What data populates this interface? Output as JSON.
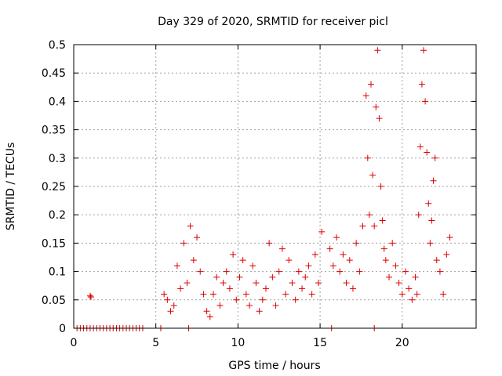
{
  "chart_data": {
    "type": "scatter",
    "title": "Day 329 of 2020, SRMTID for receiver picl",
    "xlabel": "GPS time / hours",
    "ylabel": "SRMTID / TECUs",
    "xlim": [
      0,
      24.5
    ],
    "ylim": [
      0,
      0.5
    ],
    "xticks": [
      0,
      5,
      10,
      15,
      20
    ],
    "xtick_labels": [
      "0",
      "5",
      "10",
      "15",
      "20"
    ],
    "yticks": [
      0,
      0.05,
      0.1,
      0.15,
      0.2,
      0.25,
      0.3,
      0.35,
      0.4,
      0.45,
      0.5
    ],
    "ytick_labels": [
      "0",
      "0.05",
      "0.1",
      "0.15",
      "0.2",
      "0.25",
      "0.3",
      "0.35",
      "0.4",
      "0.45",
      "0.5"
    ],
    "grid": true,
    "marker": "plus",
    "color": "#dd0000",
    "series": [
      {
        "name": "SRMTID",
        "x": [
          1.0,
          1.05,
          5.5,
          5.7,
          5.9,
          6.1,
          6.3,
          6.5,
          6.7,
          6.9,
          7.1,
          7.3,
          7.5,
          7.7,
          7.9,
          8.1,
          8.3,
          8.5,
          8.7,
          8.9,
          9.1,
          9.3,
          9.5,
          9.7,
          9.9,
          10.1,
          10.3,
          10.5,
          10.7,
          10.9,
          11.1,
          11.3,
          11.5,
          11.7,
          11.9,
          12.1,
          12.3,
          12.5,
          12.7,
          12.9,
          13.1,
          13.3,
          13.5,
          13.7,
          13.9,
          14.1,
          14.3,
          14.5,
          14.7,
          14.9,
          15.1,
          15.6,
          15.8,
          16.0,
          16.2,
          16.4,
          16.6,
          16.8,
          17.0,
          17.2,
          17.4,
          17.6,
          17.8,
          17.9,
          18.0,
          18.1,
          18.2,
          18.3,
          18.4,
          18.5,
          18.6,
          18.7,
          18.8,
          18.9,
          19.0,
          19.2,
          19.4,
          19.6,
          19.8,
          20.0,
          20.2,
          20.4,
          20.6,
          20.8,
          20.9,
          21.0,
          21.1,
          21.2,
          21.3,
          21.4,
          21.5,
          21.6,
          21.7,
          21.8,
          21.9,
          22.0,
          22.1,
          22.3,
          22.5,
          22.7,
          22.9
        ],
        "y": [
          0.057,
          0.055,
          0.06,
          0.05,
          0.03,
          0.04,
          0.11,
          0.07,
          0.15,
          0.08,
          0.18,
          0.12,
          0.16,
          0.1,
          0.06,
          0.03,
          0.02,
          0.06,
          0.09,
          0.04,
          0.08,
          0.1,
          0.07,
          0.13,
          0.05,
          0.09,
          0.12,
          0.06,
          0.04,
          0.11,
          0.08,
          0.03,
          0.05,
          0.07,
          0.15,
          0.09,
          0.04,
          0.1,
          0.14,
          0.06,
          0.12,
          0.08,
          0.05,
          0.1,
          0.07,
          0.09,
          0.11,
          0.06,
          0.13,
          0.08,
          0.17,
          0.14,
          0.11,
          0.16,
          0.1,
          0.13,
          0.08,
          0.12,
          0.07,
          0.15,
          0.1,
          0.18,
          0.41,
          0.3,
          0.2,
          0.43,
          0.27,
          0.18,
          0.39,
          0.49,
          0.37,
          0.25,
          0.19,
          0.14,
          0.12,
          0.09,
          0.15,
          0.11,
          0.08,
          0.06,
          0.1,
          0.07,
          0.05,
          0.09,
          0.06,
          0.2,
          0.32,
          0.43,
          0.49,
          0.4,
          0.31,
          0.22,
          0.15,
          0.19,
          0.26,
          0.3,
          0.12,
          0.1,
          0.06,
          0.13,
          0.16
        ]
      }
    ],
    "zero_marks_x": [
      0.2,
      0.4,
      0.6,
      0.8,
      1.0,
      1.2,
      1.4,
      1.6,
      1.8,
      2.0,
      2.2,
      2.4,
      2.6,
      2.8,
      3.0,
      3.2,
      3.4,
      3.6,
      3.8,
      4.0,
      4.2,
      5.3,
      7.0,
      15.7,
      18.3
    ]
  }
}
